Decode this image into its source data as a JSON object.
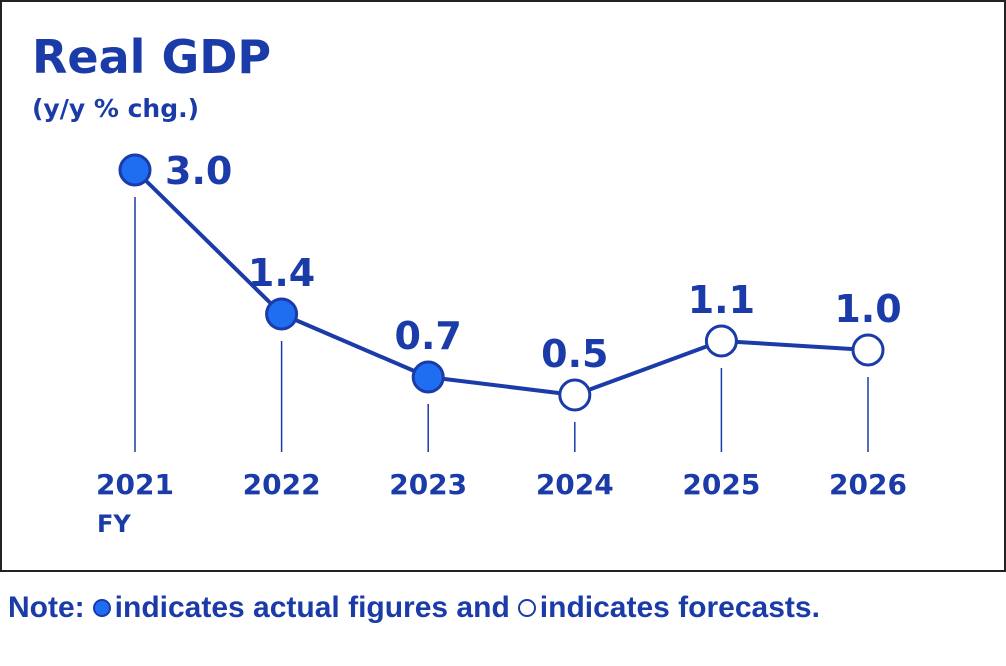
{
  "chart_data": {
    "type": "line",
    "title": "Real GDP",
    "subtitle": "(y/y % chg.)",
    "x_unit_label": "FY",
    "categories": [
      "2021",
      "2022",
      "2023",
      "2024",
      "2025",
      "2026"
    ],
    "values": [
      3.0,
      1.4,
      0.7,
      0.5,
      1.1,
      1.0
    ],
    "value_labels": [
      "3.0",
      "1.4",
      "0.7",
      "0.5",
      "1.1",
      "1.0"
    ],
    "point_types": [
      "actual",
      "actual",
      "actual",
      "forecast",
      "forecast",
      "forecast"
    ],
    "ylim": [
      0,
      3.0
    ],
    "grid": false,
    "legend": "none"
  },
  "note": {
    "prefix": "Note:",
    "actual_text": "indicates actual figures and",
    "forecast_text": "indicates forecasts."
  },
  "colors": {
    "primary": "#1a3ba8",
    "point_fill_actual": "#1f6df0",
    "point_fill_forecast": "#ffffff",
    "frame": "#222222"
  }
}
